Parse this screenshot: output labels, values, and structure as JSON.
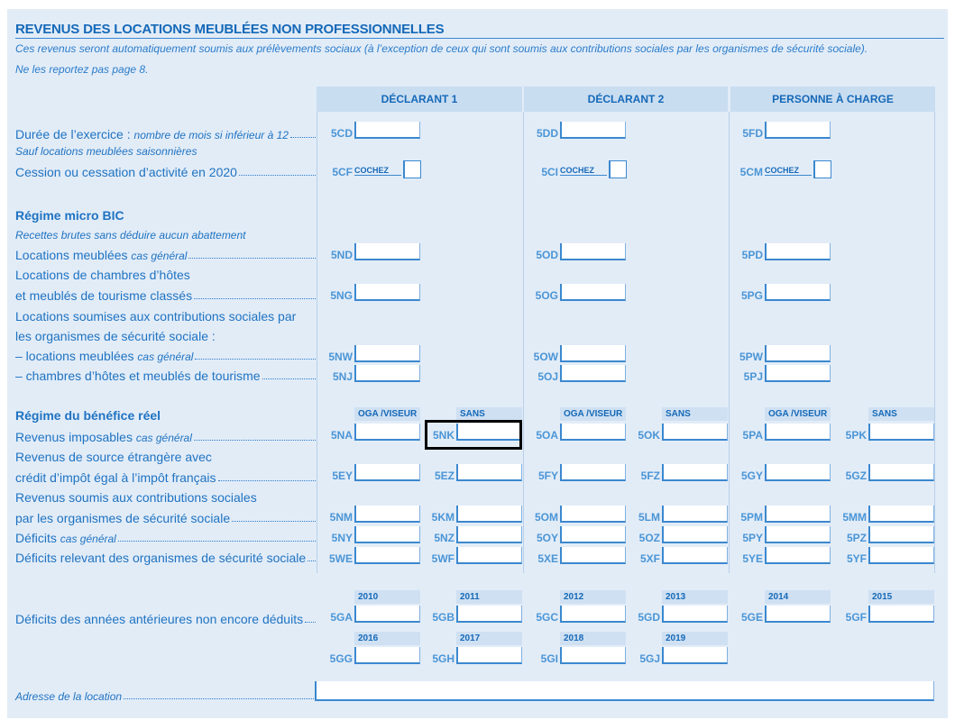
{
  "title": "REVENUS DES LOCATIONS MEUBLÉES NON PROFESSIONNELLES",
  "intro": [
    "Ces revenus seront automatiquement soumis aux prélèvements sociaux (à l’exception de ceux qui sont soumis aux contributions sociales par les organismes de sécurité sociale).",
    "Ne les reportez pas page 8."
  ],
  "columns": [
    "DÉCLARANT 1",
    "DÉCLARANT 2",
    "PERSONNE À CHARGE"
  ],
  "sub_headers": {
    "oga": "OGA /VISEUR",
    "sans": "SANS"
  },
  "cochez": "COCHEZ",
  "lines": [
    {
      "t": "Durée de l’exercice",
      "sep": " : ",
      "it": "nombre de mois si inférieur à 12",
      "lead": true
    },
    {
      "t": "Sauf locations meublées saisonnières",
      "style": "small"
    },
    {
      "t": "Cession ou cessation d’activité en 2020",
      "lead": true
    },
    {
      "t": "Régime micro BIC",
      "style": "bold"
    },
    {
      "t": "Recettes brutes sans déduire aucun abattement",
      "style": "small"
    },
    {
      "t": "Locations meublées",
      "sep": " ",
      "it": "cas général",
      "lead": true
    },
    {
      "t": "Locations de chambres d’hôtes"
    },
    {
      "t": "et meublés de tourisme classés",
      "lead": true
    },
    {
      "t": "Locations soumises aux contributions sociales par"
    },
    {
      "t": "les organismes de sécurité sociale :"
    },
    {
      "t": "– locations meublées",
      "sep": " ",
      "it": "cas général",
      "lead": true
    },
    {
      "t": "– chambres d’hôtes et meublés de tourisme",
      "lead": true
    },
    {
      "t": "Régime du bénéfice réel",
      "style": "bold"
    },
    {
      "t": "Revenus imposables",
      "sep": " ",
      "it": "cas général",
      "lead": true
    },
    {
      "t": "Revenus de source étrangère avec"
    },
    {
      "t": "crédit d’impôt égal à l’impôt français",
      "lead": true
    },
    {
      "t": "Revenus soumis aux contributions sociales"
    },
    {
      "t": "par les organismes de sécurité sociale",
      "lead": true
    },
    {
      "t": "Déficits",
      "sep": " ",
      "it": "cas général",
      "lead": true
    },
    {
      "t": "Déficits relevant des organismes de sécurité sociale",
      "lead": true
    },
    {
      "t": "Déficits des années antérieures non encore déduits",
      "lead": true
    },
    {
      "t": "Adresse de la location",
      "style": "small",
      "lead": true
    }
  ],
  "rows": [
    {
      "cells": [
        "5CD",
        null,
        "5DD",
        null,
        "5FD",
        null
      ]
    },
    {
      "checkbox": true,
      "cells": [
        "5CF",
        null,
        "5CI",
        null,
        "5CM",
        null
      ]
    },
    {
      "cells": [
        "5ND",
        null,
        "5OD",
        null,
        "5PD",
        null
      ]
    },
    {
      "cells": [
        "5NG",
        null,
        "5OG",
        null,
        "5PG",
        null
      ]
    },
    {
      "cells": [
        "5NW",
        null,
        "5OW",
        null,
        "5PW",
        null
      ]
    },
    {
      "cells": [
        "5NJ",
        null,
        "5OJ",
        null,
        "5PJ",
        null
      ]
    },
    {
      "cells": [
        "5NA",
        "5NK",
        "5OA",
        "5OK",
        "5PA",
        "5PK"
      ]
    },
    {
      "cells": [
        "5EY",
        "5EZ",
        "5FY",
        "5FZ",
        "5GY",
        "5GZ"
      ]
    },
    {
      "cells": [
        "5NM",
        "5KM",
        "5OM",
        "5LM",
        "5PM",
        "5MM"
      ]
    },
    {
      "cells": [
        "5NY",
        "5NZ",
        "5OY",
        "5OZ",
        "5PY",
        "5PZ"
      ]
    },
    {
      "cells": [
        "5WE",
        "5WF",
        "5XE",
        "5XF",
        "5YE",
        "5YF"
      ]
    },
    {
      "years": [
        "2010",
        "2011",
        "2012",
        "2013",
        "2014",
        "2015"
      ],
      "cells": [
        "5GA",
        "5GB",
        "5GC",
        "5GD",
        "5GE",
        "5GF"
      ]
    },
    {
      "years": [
        "2016",
        "2017",
        "2018",
        "2019",
        null,
        null
      ],
      "cells": [
        "5GG",
        "5GH",
        "5GI",
        "5GJ",
        null,
        null
      ]
    }
  ],
  "highlighted_field": "5NK"
}
